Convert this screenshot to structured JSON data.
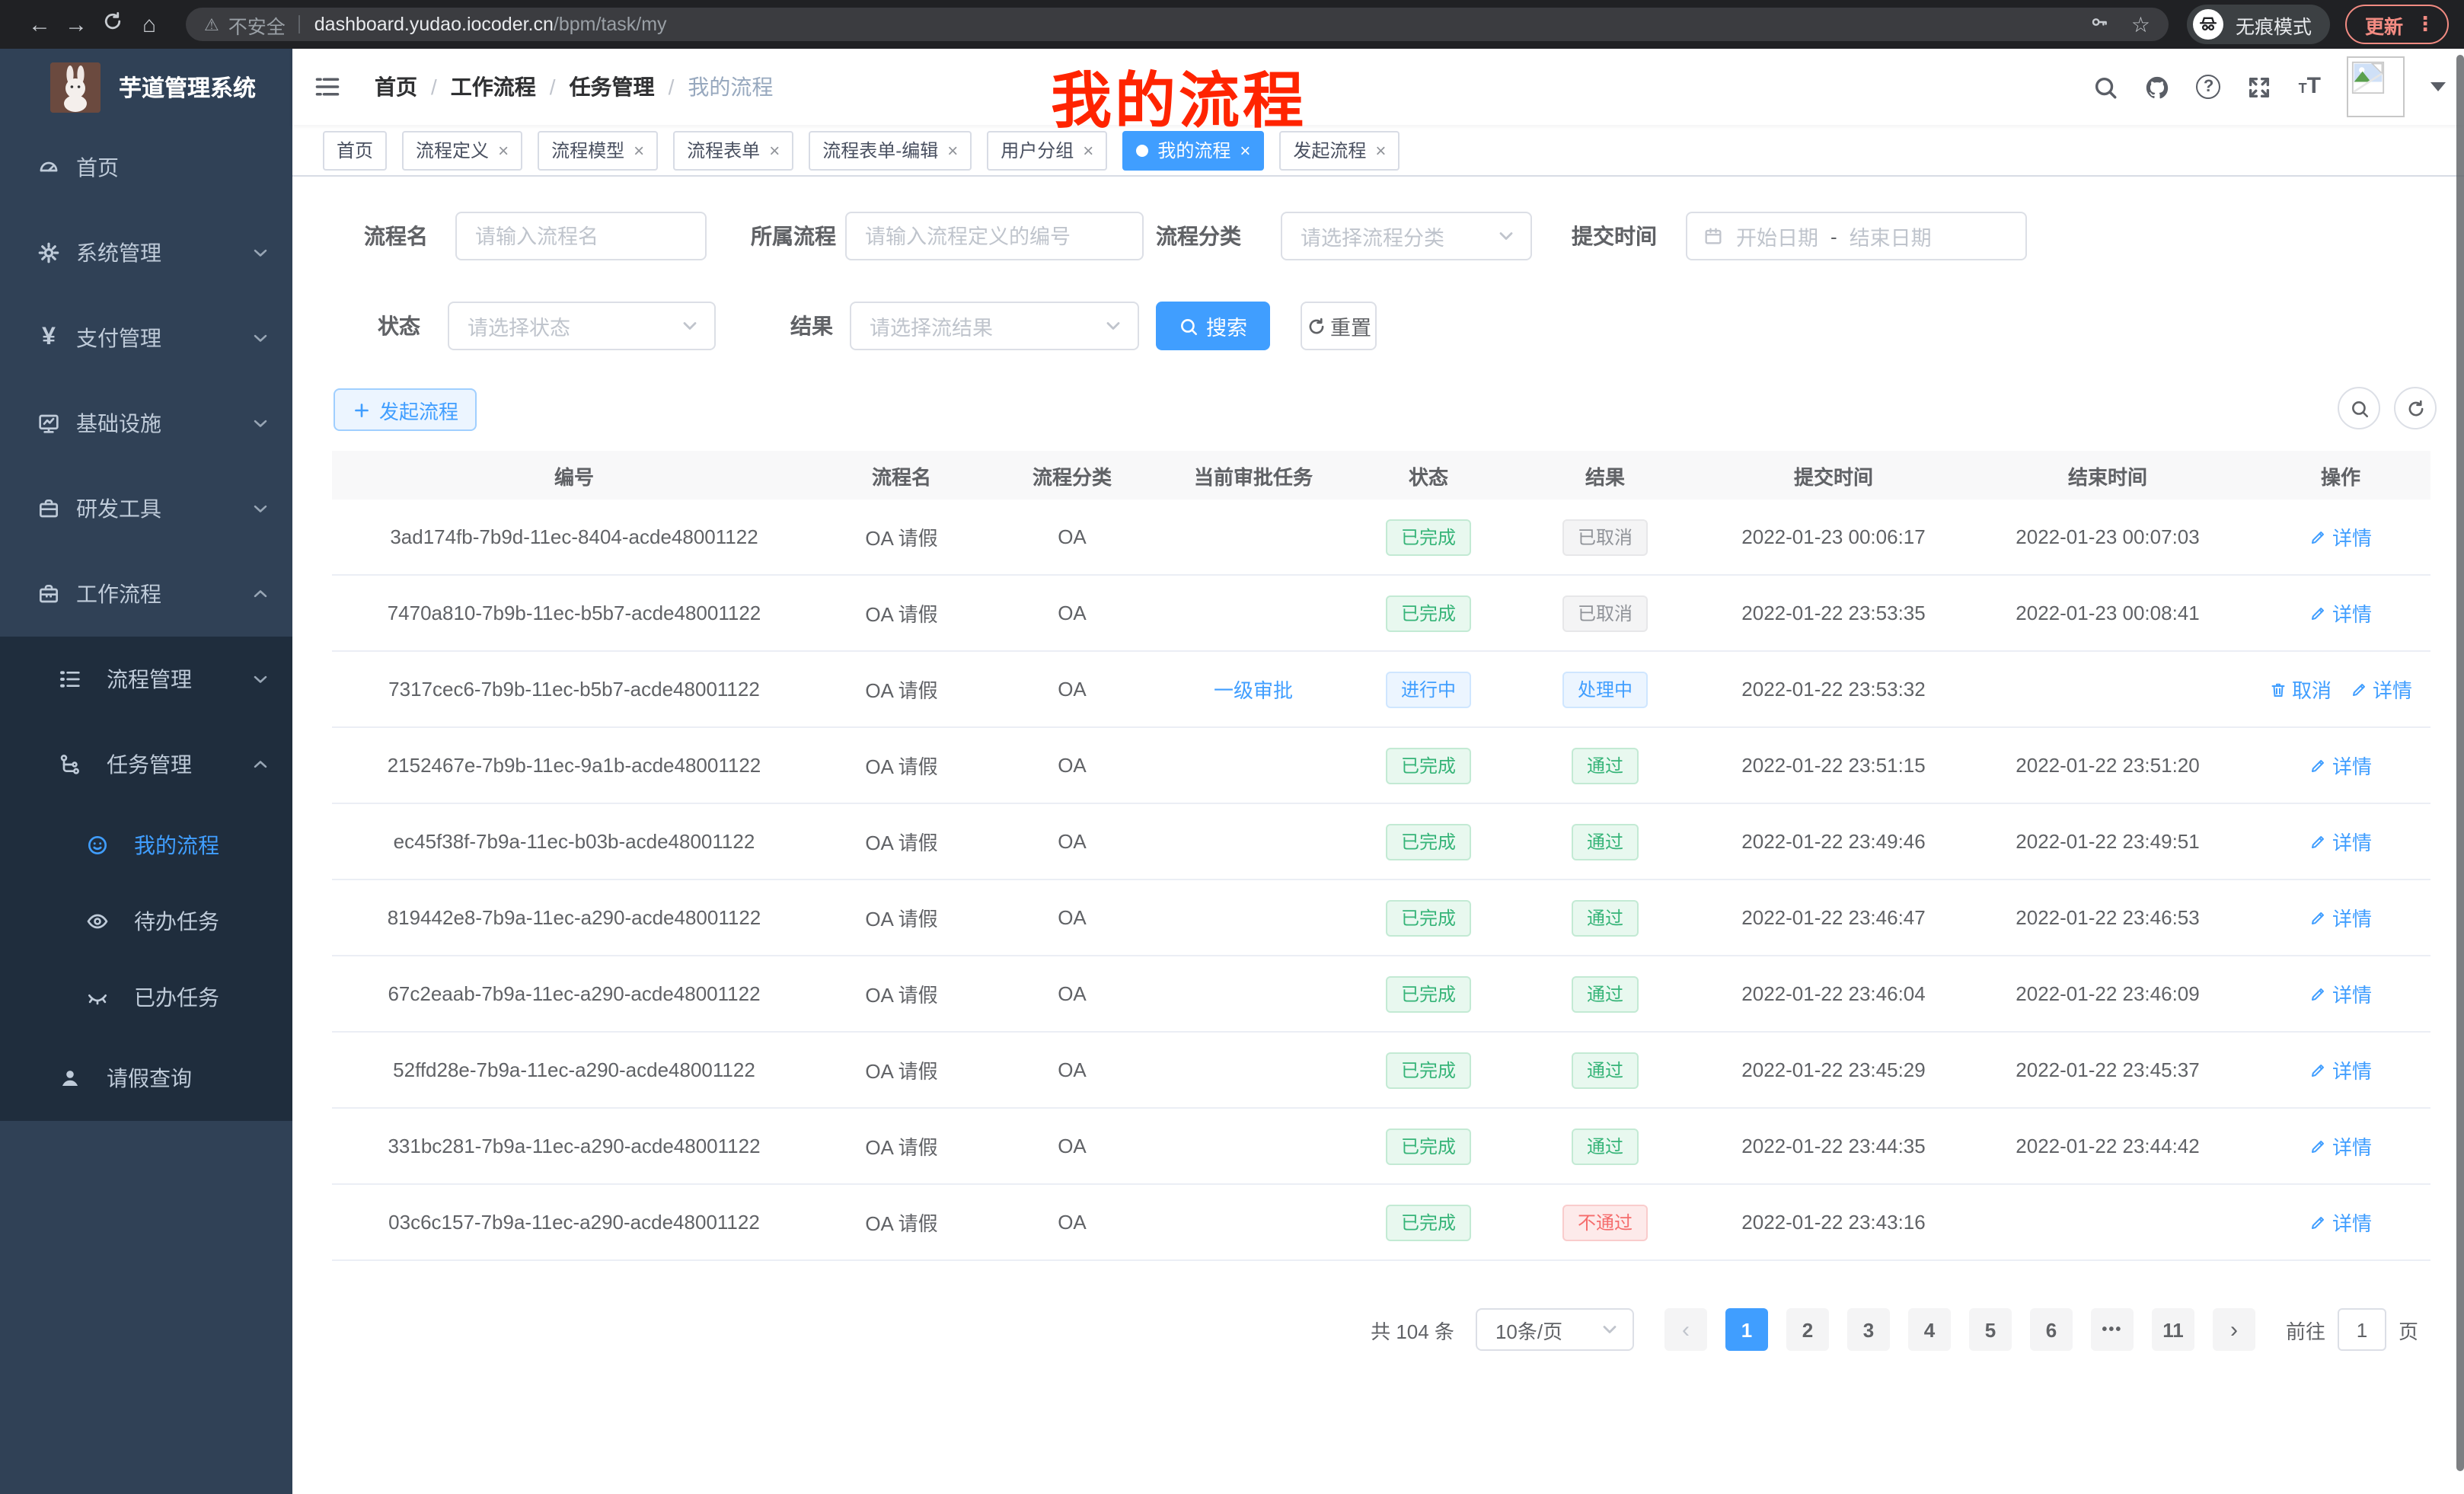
{
  "browser": {
    "security_label": "不安全",
    "url_host": "dashboard.yudao.iocoder.cn",
    "url_path": "/bpm/task/my",
    "incognito_label": "无痕模式",
    "update_label": "更新"
  },
  "annotation": {
    "text": "我的流程"
  },
  "sidebar": {
    "logo_title": "芋道管理系统",
    "menu": [
      {
        "key": "home",
        "label": "首页",
        "icon": "gauge",
        "level": 1,
        "chevron": "",
        "dark": false,
        "active": false
      },
      {
        "key": "system",
        "label": "系统管理",
        "icon": "gear",
        "level": 1,
        "chevron": "down",
        "dark": false,
        "active": false
      },
      {
        "key": "payment",
        "label": "支付管理",
        "icon": "yen",
        "level": 1,
        "chevron": "down",
        "dark": false,
        "active": false
      },
      {
        "key": "infra",
        "label": "基础设施",
        "icon": "monitor",
        "level": 1,
        "chevron": "down",
        "dark": false,
        "active": false
      },
      {
        "key": "dev-tools",
        "label": "研发工具",
        "icon": "briefcase",
        "level": 1,
        "chevron": "down",
        "dark": false,
        "active": false
      },
      {
        "key": "workflow",
        "label": "工作流程",
        "icon": "toolbox",
        "level": 1,
        "chevron": "up",
        "dark": false,
        "active": false
      },
      {
        "key": "process-mgmt",
        "label": "流程管理",
        "icon": "list",
        "level": 2,
        "chevron": "down",
        "dark": true,
        "active": false
      },
      {
        "key": "task-mgmt",
        "label": "任务管理",
        "icon": "flow",
        "level": 2,
        "chevron": "up",
        "dark": true,
        "active": false
      },
      {
        "key": "my-process",
        "label": "我的流程",
        "icon": "robot",
        "level": 3,
        "chevron": "",
        "dark": true,
        "active": true
      },
      {
        "key": "todo-tasks",
        "label": "待办任务",
        "icon": "eye",
        "level": 3,
        "chevron": "",
        "dark": true,
        "active": false
      },
      {
        "key": "done-tasks",
        "label": "已办任务",
        "icon": "eye-closed",
        "level": 3,
        "chevron": "",
        "dark": true,
        "active": false
      },
      {
        "key": "leave-query",
        "label": "请假查询",
        "icon": "user",
        "level": 2,
        "chevron": "",
        "dark": true,
        "active": false
      }
    ]
  },
  "header": {
    "breadcrumb": [
      "首页",
      "工作流程",
      "任务管理",
      "我的流程"
    ]
  },
  "tabs": [
    {
      "label": "首页",
      "closable": false,
      "active": false
    },
    {
      "label": "流程定义",
      "closable": true,
      "active": false
    },
    {
      "label": "流程模型",
      "closable": true,
      "active": false
    },
    {
      "label": "流程表单",
      "closable": true,
      "active": false
    },
    {
      "label": "流程表单-编辑",
      "closable": true,
      "active": false
    },
    {
      "label": "用户分组",
      "closable": true,
      "active": false
    },
    {
      "label": "我的流程",
      "closable": true,
      "active": true
    },
    {
      "label": "发起流程",
      "closable": true,
      "active": false
    }
  ],
  "filters": {
    "name": {
      "label": "流程名",
      "placeholder": "请输入流程名"
    },
    "definition": {
      "label": "所属流程",
      "placeholder": "请输入流程定义的编号"
    },
    "category": {
      "label": "流程分类",
      "placeholder": "请选择流程分类"
    },
    "submit_time": {
      "label": "提交时间",
      "start_placeholder": "开始日期",
      "separator": "-",
      "end_placeholder": "结束日期"
    },
    "status": {
      "label": "状态",
      "placeholder": "请选择状态"
    },
    "result": {
      "label": "结果",
      "placeholder": "请选择流结果"
    },
    "search_label": "搜索",
    "reset_label": "重置"
  },
  "toolbar": {
    "create_label": "发起流程"
  },
  "table": {
    "columns": [
      "编号",
      "流程名",
      "流程分类",
      "当前审批任务",
      "状态",
      "结果",
      "提交时间",
      "结束时间",
      "操作"
    ],
    "rows": [
      {
        "id": "3ad174fb-7b9d-11ec-8404-acde48001122",
        "name": "OA 请假",
        "category": "OA",
        "task": "",
        "status": {
          "label": "已完成",
          "kind": "success"
        },
        "result": {
          "label": "已取消",
          "kind": "info"
        },
        "submit_time": "2022-01-23 00:06:17",
        "end_time": "2022-01-23 00:07:03",
        "actions": [
          {
            "label": "详情",
            "icon": "edit"
          }
        ]
      },
      {
        "id": "7470a810-7b9b-11ec-b5b7-acde48001122",
        "name": "OA 请假",
        "category": "OA",
        "task": "",
        "status": {
          "label": "已完成",
          "kind": "success"
        },
        "result": {
          "label": "已取消",
          "kind": "info"
        },
        "submit_time": "2022-01-22 23:53:35",
        "end_time": "2022-01-23 00:08:41",
        "actions": [
          {
            "label": "详情",
            "icon": "edit"
          }
        ]
      },
      {
        "id": "7317cec6-7b9b-11ec-b5b7-acde48001122",
        "name": "OA 请假",
        "category": "OA",
        "task": "一级审批",
        "status": {
          "label": "进行中",
          "kind": "primary"
        },
        "result": {
          "label": "处理中",
          "kind": "primary"
        },
        "submit_time": "2022-01-22 23:53:32",
        "end_time": "",
        "actions": [
          {
            "label": "取消",
            "icon": "trash"
          },
          {
            "label": "详情",
            "icon": "edit"
          }
        ]
      },
      {
        "id": "2152467e-7b9b-11ec-9a1b-acde48001122",
        "name": "OA 请假",
        "category": "OA",
        "task": "",
        "status": {
          "label": "已完成",
          "kind": "success"
        },
        "result": {
          "label": "通过",
          "kind": "success"
        },
        "submit_time": "2022-01-22 23:51:15",
        "end_time": "2022-01-22 23:51:20",
        "actions": [
          {
            "label": "详情",
            "icon": "edit"
          }
        ]
      },
      {
        "id": "ec45f38f-7b9a-11ec-b03b-acde48001122",
        "name": "OA 请假",
        "category": "OA",
        "task": "",
        "status": {
          "label": "已完成",
          "kind": "success"
        },
        "result": {
          "label": "通过",
          "kind": "success"
        },
        "submit_time": "2022-01-22 23:49:46",
        "end_time": "2022-01-22 23:49:51",
        "actions": [
          {
            "label": "详情",
            "icon": "edit"
          }
        ]
      },
      {
        "id": "819442e8-7b9a-11ec-a290-acde48001122",
        "name": "OA 请假",
        "category": "OA",
        "task": "",
        "status": {
          "label": "已完成",
          "kind": "success"
        },
        "result": {
          "label": "通过",
          "kind": "success"
        },
        "submit_time": "2022-01-22 23:46:47",
        "end_time": "2022-01-22 23:46:53",
        "actions": [
          {
            "label": "详情",
            "icon": "edit"
          }
        ]
      },
      {
        "id": "67c2eaab-7b9a-11ec-a290-acde48001122",
        "name": "OA 请假",
        "category": "OA",
        "task": "",
        "status": {
          "label": "已完成",
          "kind": "success"
        },
        "result": {
          "label": "通过",
          "kind": "success"
        },
        "submit_time": "2022-01-22 23:46:04",
        "end_time": "2022-01-22 23:46:09",
        "actions": [
          {
            "label": "详情",
            "icon": "edit"
          }
        ]
      },
      {
        "id": "52ffd28e-7b9a-11ec-a290-acde48001122",
        "name": "OA 请假",
        "category": "OA",
        "task": "",
        "status": {
          "label": "已完成",
          "kind": "success"
        },
        "result": {
          "label": "通过",
          "kind": "success"
        },
        "submit_time": "2022-01-22 23:45:29",
        "end_time": "2022-01-22 23:45:37",
        "actions": [
          {
            "label": "详情",
            "icon": "edit"
          }
        ]
      },
      {
        "id": "331bc281-7b9a-11ec-a290-acde48001122",
        "name": "OA 请假",
        "category": "OA",
        "task": "",
        "status": {
          "label": "已完成",
          "kind": "success"
        },
        "result": {
          "label": "通过",
          "kind": "success"
        },
        "submit_time": "2022-01-22 23:44:35",
        "end_time": "2022-01-22 23:44:42",
        "actions": [
          {
            "label": "详情",
            "icon": "edit"
          }
        ]
      },
      {
        "id": "03c6c157-7b9a-11ec-a290-acde48001122",
        "name": "OA 请假",
        "category": "OA",
        "task": "",
        "status": {
          "label": "已完成",
          "kind": "success"
        },
        "result": {
          "label": "不通过",
          "kind": "danger"
        },
        "submit_time": "2022-01-22 23:43:16",
        "end_time": "",
        "actions": [
          {
            "label": "详情",
            "icon": "edit"
          }
        ]
      }
    ]
  },
  "pagination": {
    "total": "共 104 条",
    "page_size": "10条/页",
    "pages": [
      {
        "label": "1",
        "active": true,
        "ellipsis": false
      },
      {
        "label": "2",
        "active": false,
        "ellipsis": false
      },
      {
        "label": "3",
        "active": false,
        "ellipsis": false
      },
      {
        "label": "4",
        "active": false,
        "ellipsis": false
      },
      {
        "label": "5",
        "active": false,
        "ellipsis": false
      },
      {
        "label": "6",
        "active": false,
        "ellipsis": false
      },
      {
        "label": "•••",
        "active": false,
        "ellipsis": true
      },
      {
        "label": "11",
        "active": false,
        "ellipsis": false
      }
    ],
    "goto_label": "前往",
    "goto_value": "1",
    "goto_unit": "页"
  },
  "colors": {
    "accent": "#409eff",
    "success": "#36b478",
    "danger": "#f56c6c",
    "info": "#909399",
    "sidebar_bg": "#304156",
    "sidebar_sub_bg": "#1f2d3d",
    "annotation_red": "#ff2400",
    "update_red": "#f28b82"
  }
}
